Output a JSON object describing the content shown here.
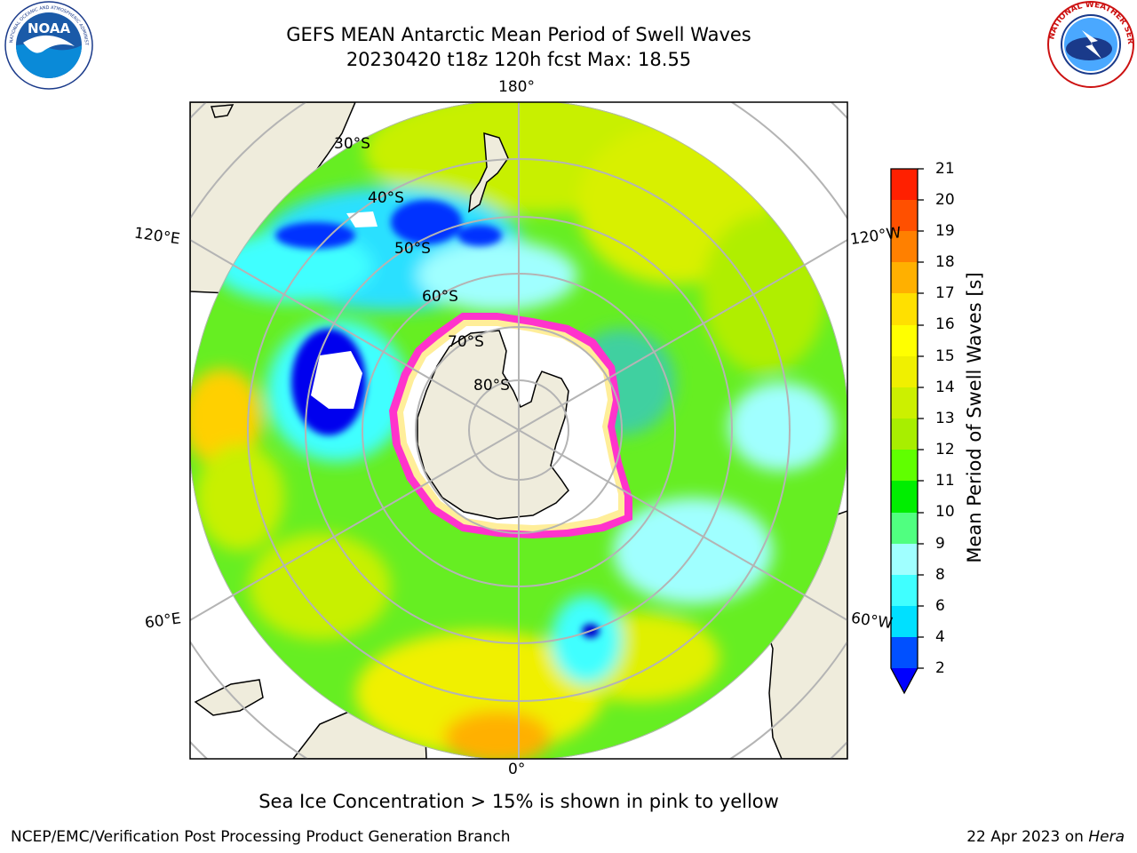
{
  "title": {
    "line1": "GEFS MEAN Antarctic Mean Period of Swell Waves",
    "line2": "20230420 t18z 120h fcst   Max: 18.55"
  },
  "logos": {
    "left": {
      "text": "NOAA",
      "icon": "noaa-logo-icon",
      "ring": "NATIONAL OCEANIC AND ATMOSPHERIC ADMINISTRATION · U.S. DEPARTMENT OF COMMERCE"
    },
    "right": {
      "icon": "nws-logo-icon",
      "ring": "NATIONAL WEATHER SERVICE"
    }
  },
  "map": {
    "projection": "south-polar-stereographic",
    "longitude_labels": {
      "top": "180°",
      "bottom": "0°",
      "left_upper": "120°E",
      "left_lower": "60°E",
      "right_upper": "120°W",
      "right_lower": "60°W"
    },
    "latitude_labels": [
      "30°S",
      "40°S",
      "50°S",
      "60°S",
      "70°S",
      "80°S"
    ],
    "colors": {
      "land": "#efecdc",
      "coast": "#000000",
      "grid": "#b4b4b4",
      "ice_edge": "#ff33cc",
      "ice_inner": "#ffffff"
    }
  },
  "colorbar": {
    "label": "Mean Period of Swell Waves [s]",
    "ticks": [
      "2",
      "4",
      "6",
      "8",
      "9",
      "10",
      "11",
      "12",
      "13",
      "14",
      "15",
      "16",
      "17",
      "18",
      "19",
      "20",
      "21"
    ],
    "colors": [
      "#0050ff",
      "#00e0ff",
      "#40ffff",
      "#a0ffff",
      "#50ff80",
      "#00ee00",
      "#60ff00",
      "#a8ee00",
      "#ccf000",
      "#f0f000",
      "#ffff00",
      "#ffe000",
      "#ffb000",
      "#ff8000",
      "#ff5000",
      "#ff2000"
    ],
    "under_color": "#0000ff"
  },
  "subtitle": "Sea Ice Concentration > 15% is shown in pink to yellow",
  "footer": {
    "left": "NCEP/EMC/Verification Post Processing Product Generation Branch",
    "date": "22 Apr 2023 on ",
    "host": "Hera"
  }
}
